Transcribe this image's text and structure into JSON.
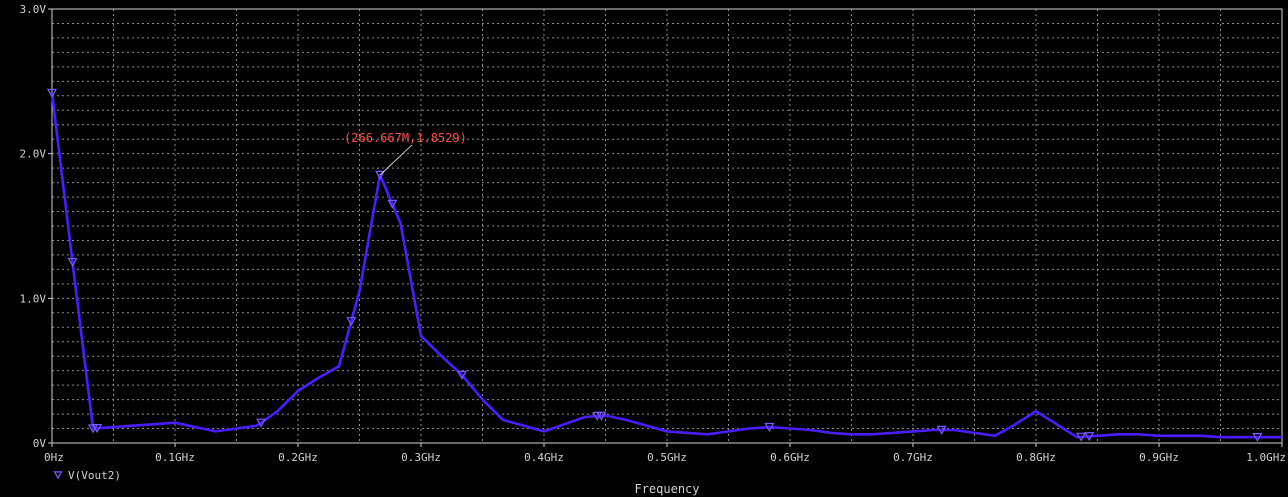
{
  "chart_data": {
    "type": "line",
    "xlabel": "Frequency",
    "ylabel": "",
    "xlim": [
      0,
      1.0
    ],
    "ylim": [
      0,
      3.0
    ],
    "grid": true,
    "legend_position": "bottom-left",
    "x_ticks": [
      {
        "value": 0.0,
        "label": "0Hz"
      },
      {
        "value": 0.1,
        "label": "0.1GHz"
      },
      {
        "value": 0.2,
        "label": "0.2GHz"
      },
      {
        "value": 0.3,
        "label": "0.3GHz"
      },
      {
        "value": 0.4,
        "label": "0.4GHz"
      },
      {
        "value": 0.5,
        "label": "0.5GHz"
      },
      {
        "value": 0.6,
        "label": "0.6GHz"
      },
      {
        "value": 0.7,
        "label": "0.7GHz"
      },
      {
        "value": 0.8,
        "label": "0.8GHz"
      },
      {
        "value": 0.9,
        "label": "0.9GHz"
      },
      {
        "value": 1.0,
        "label": "1.0GHz"
      }
    ],
    "y_ticks": [
      {
        "value": 0.0,
        "label": "0V"
      },
      {
        "value": 1.0,
        "label": "1.0V"
      },
      {
        "value": 2.0,
        "label": "2.0V"
      },
      {
        "value": 3.0,
        "label": "3.0V"
      }
    ],
    "series": [
      {
        "name": "V(Vout2)",
        "color": "#4a1cff",
        "marker": "down-triangle",
        "x": [
          0.0,
          0.0167,
          0.0333,
          0.05,
          0.0667,
          0.0833,
          0.1,
          0.1167,
          0.1333,
          0.15,
          0.1667,
          0.1833,
          0.2,
          0.2167,
          0.2333,
          0.25,
          0.2667,
          0.2833,
          0.3,
          0.3167,
          0.3333,
          0.35,
          0.3667,
          0.3833,
          0.4,
          0.4167,
          0.4333,
          0.45,
          0.4667,
          0.4833,
          0.5,
          0.5167,
          0.5333,
          0.55,
          0.5667,
          0.5833,
          0.6,
          0.6167,
          0.6333,
          0.65,
          0.6667,
          0.6833,
          0.7,
          0.7167,
          0.7333,
          0.75,
          0.7667,
          0.7833,
          0.8,
          0.8167,
          0.8333,
          0.85,
          0.8667,
          0.8833,
          0.9,
          0.9167,
          0.9333,
          0.95,
          0.9667,
          0.9833,
          1.0
        ],
        "y": [
          2.42,
          1.25,
          0.1,
          0.11,
          0.12,
          0.13,
          0.14,
          0.11,
          0.08,
          0.1,
          0.12,
          0.22,
          0.36,
          0.45,
          0.53,
          1.05,
          1.8529,
          1.52,
          0.74,
          0.6,
          0.47,
          0.3,
          0.16,
          0.12,
          0.08,
          0.13,
          0.18,
          0.19,
          0.16,
          0.12,
          0.08,
          0.07,
          0.06,
          0.08,
          0.1,
          0.11,
          0.1,
          0.09,
          0.07,
          0.06,
          0.06,
          0.07,
          0.08,
          0.09,
          0.09,
          0.07,
          0.05,
          0.13,
          0.22,
          0.13,
          0.04,
          0.05,
          0.06,
          0.06,
          0.05,
          0.05,
          0.05,
          0.04,
          0.04,
          0.04,
          0.04
        ],
        "marker_x": [
          0.0,
          0.0167,
          0.0333,
          0.0367,
          0.17,
          0.2433,
          0.2667,
          0.2767,
          0.3333,
          0.4433,
          0.4467,
          0.5833,
          0.7233,
          0.8367,
          0.8433,
          0.98
        ]
      }
    ],
    "annotations": [
      {
        "text": "(266.667M,1.8529)",
        "x": 0.2667,
        "y": 1.8529,
        "color": "#ff4a4a"
      }
    ]
  }
}
